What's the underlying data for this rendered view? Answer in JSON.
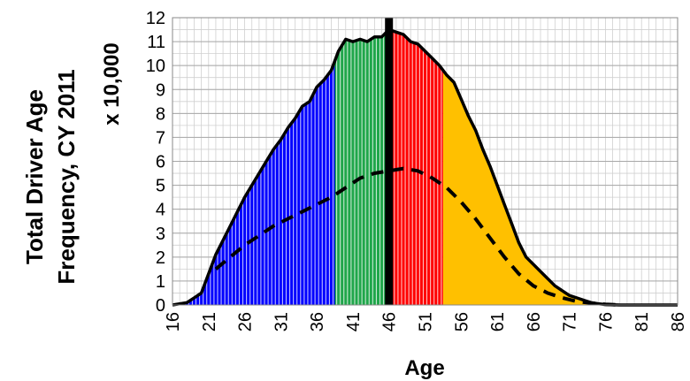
{
  "chart_data": {
    "type": "area",
    "ylabel_line1": "Total Driver Age",
    "ylabel_line2": "Frequency, CY 2011",
    "ylabel_unit": "x 10,000",
    "xlabel": "Age",
    "xlim": [
      16,
      86
    ],
    "ylim": [
      0,
      12
    ],
    "grid": true,
    "x_ticks": [
      16,
      21,
      26,
      31,
      36,
      41,
      46,
      51,
      56,
      61,
      66,
      71,
      76,
      81,
      86
    ],
    "y_ticks": [
      0,
      1,
      2,
      3,
      4,
      5,
      6,
      7,
      8,
      9,
      10,
      11,
      12
    ],
    "marker_age": 46,
    "bands": [
      {
        "from": 16,
        "to": 38.5,
        "color": "#0000ff"
      },
      {
        "from": 38.5,
        "to": 46,
        "color": "#1fa64a"
      },
      {
        "from": 46,
        "to": 53.5,
        "color": "#ff0000"
      },
      {
        "from": 53.5,
        "to": 86,
        "color": "#ffc000"
      }
    ],
    "series": [
      {
        "style": "solid",
        "x": [
          16,
          18,
          19,
          20,
          21,
          22,
          23,
          24,
          25,
          26,
          27,
          28,
          29,
          30,
          31,
          32,
          33,
          34,
          35,
          36,
          37,
          38,
          39,
          40,
          41,
          42,
          43,
          44,
          45,
          46,
          47,
          48,
          49,
          50,
          51,
          52,
          53,
          54,
          55,
          56,
          57,
          58,
          59,
          60,
          61,
          62,
          63,
          64,
          65,
          66,
          67,
          68,
          69,
          70,
          71,
          72,
          73,
          74,
          75,
          76,
          78,
          80,
          82,
          84,
          86
        ],
        "values": [
          0,
          0.1,
          0.3,
          0.5,
          1.3,
          2.1,
          2.7,
          3.3,
          3.9,
          4.5,
          5.0,
          5.5,
          6.0,
          6.5,
          6.9,
          7.4,
          7.8,
          8.3,
          8.5,
          9.1,
          9.4,
          9.8,
          10.6,
          11.1,
          11.0,
          11.1,
          11.0,
          11.2,
          11.2,
          11.5,
          11.4,
          11.3,
          11.0,
          10.9,
          10.6,
          10.3,
          10.0,
          9.6,
          9.3,
          8.6,
          7.9,
          7.3,
          6.5,
          5.8,
          5.0,
          4.2,
          3.4,
          2.6,
          2.0,
          1.7,
          1.4,
          1.1,
          0.8,
          0.6,
          0.4,
          0.3,
          0.2,
          0.1,
          0.05,
          0.02,
          0,
          0,
          0,
          0,
          0
        ]
      },
      {
        "style": "dashed",
        "x": [
          22,
          24,
          26,
          28,
          30,
          32,
          34,
          36,
          38,
          40,
          42,
          44,
          46,
          48,
          50,
          52,
          54,
          56,
          58,
          60,
          62,
          64,
          66,
          68,
          70,
          72,
          74,
          76,
          78
        ],
        "values": [
          1.5,
          2.0,
          2.5,
          2.9,
          3.3,
          3.6,
          3.9,
          4.2,
          4.5,
          4.9,
          5.3,
          5.5,
          5.6,
          5.7,
          5.6,
          5.3,
          4.9,
          4.3,
          3.6,
          2.8,
          2.0,
          1.3,
          0.8,
          0.5,
          0.3,
          0.15,
          0.08,
          0.03,
          0
        ]
      }
    ]
  }
}
